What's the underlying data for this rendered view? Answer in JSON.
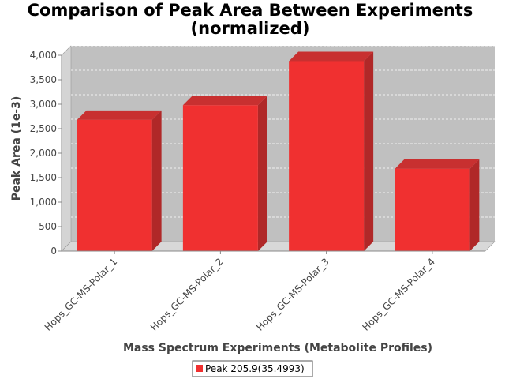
{
  "chart_data": {
    "type": "bar",
    "title": "Comparison of Peak Area Between Experiments",
    "subtitle": "(normalized)",
    "xlabel": "Mass Spectrum Experiments (Metabolite Profiles)",
    "ylabel": "Peak Area (1e-3)",
    "categories": [
      "Hops_GC-MS-Polar_1",
      "Hops_GC-MS-Polar_2",
      "Hops_GC-MS-Polar_3",
      "Hops_GC-MS-Polar_4"
    ],
    "series": [
      {
        "name": "Peak 205.9(35.4993)",
        "values": [
          2680,
          2980,
          3880,
          1680
        ],
        "color": "#f03030"
      }
    ],
    "ylim": [
      0,
      4000
    ],
    "yticks": [
      0,
      500,
      1000,
      1500,
      2000,
      2500,
      3000,
      3500,
      4000
    ],
    "ytick_labels": [
      "0",
      "500",
      "1,000",
      "1,500",
      "2,000",
      "2,500",
      "3,000",
      "3,500",
      "4,000"
    ],
    "grid": true,
    "legend_position": "bottom",
    "plot_background": "#c0c0c0",
    "side_color": "#b02828",
    "top_color": "#c83030"
  }
}
